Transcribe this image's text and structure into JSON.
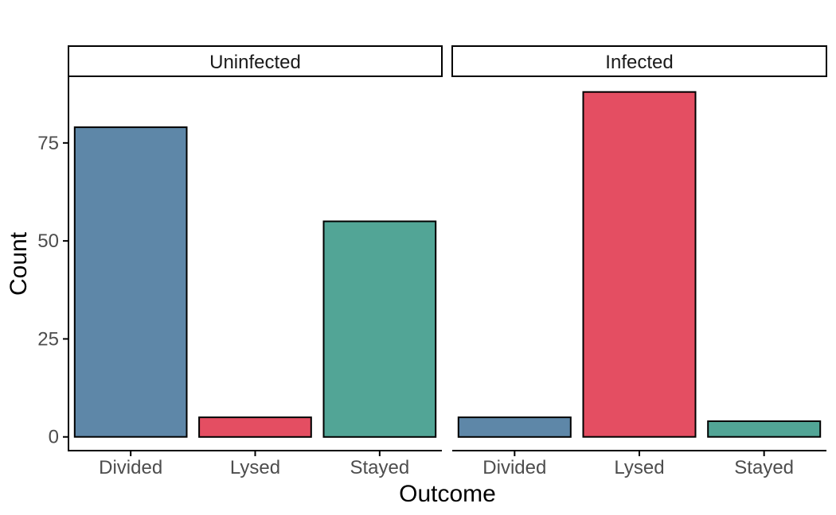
{
  "chart_data": {
    "type": "bar",
    "xlabel": "Outcome",
    "ylabel": "Count",
    "ylim": [
      -3.5,
      92
    ],
    "yticks": [
      0,
      25,
      50,
      75
    ],
    "categories": [
      "Divided",
      "Lysed",
      "Stayed"
    ],
    "colors": {
      "Divided": "#5E87A8",
      "Lysed": "#E44E62",
      "Stayed": "#52A596"
    },
    "panels": [
      {
        "name": "Uninfected",
        "values": [
          79,
          5,
          55
        ]
      },
      {
        "name": "Infected",
        "values": [
          5,
          88,
          4
        ]
      }
    ]
  }
}
